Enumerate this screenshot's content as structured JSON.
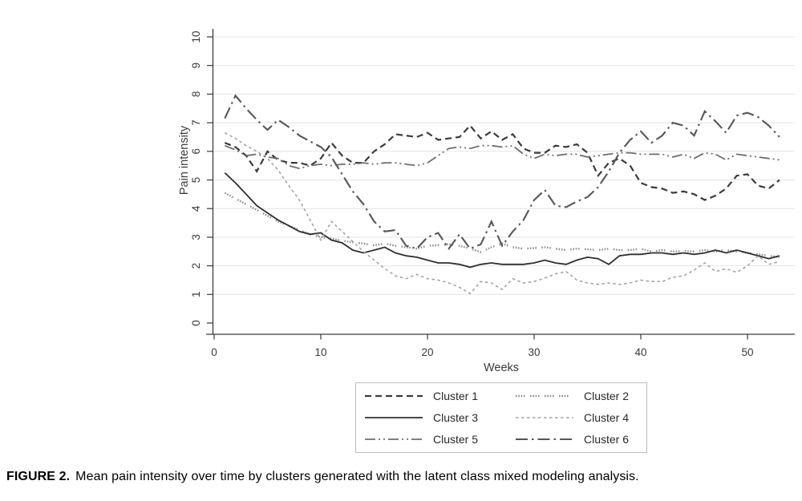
{
  "figure": {
    "caption_label": "FIGURE 2.",
    "caption_text": "Mean pain intensity over time by clusters generated with the latent class mixed modeling analysis."
  },
  "chart_data": {
    "type": "line",
    "title": "",
    "xlabel": "Weeks",
    "ylabel": "Pain intensity",
    "xlim": [
      0,
      54
    ],
    "ylim": [
      0,
      10
    ],
    "x_ticks": [
      0,
      10,
      20,
      30,
      40,
      50
    ],
    "y_ticks": [
      0,
      1,
      2,
      3,
      4,
      5,
      6,
      7,
      8,
      9,
      10
    ],
    "grid": "horizontal-light-gray",
    "legend_position": "below-chart-boxed-2-columns",
    "x_weeks": {
      "first": 1,
      "last": 53,
      "step": 1
    },
    "axis_color": "#3a3a3a",
    "grid_color": "#e4e4e4",
    "series": [
      {
        "name": "Cluster 1",
        "color": "#3b3b3b",
        "dash_style": "dashed",
        "values": [
          6.3,
          6.15,
          5.85,
          5.3,
          6.0,
          5.7,
          5.6,
          5.6,
          5.5,
          5.75,
          6.3,
          5.85,
          5.6,
          5.6,
          6.0,
          6.25,
          6.6,
          6.55,
          6.5,
          6.65,
          6.4,
          6.45,
          6.5,
          6.9,
          6.45,
          6.7,
          6.4,
          6.6,
          6.1,
          5.95,
          5.95,
          6.2,
          6.15,
          6.25,
          5.95,
          5.15,
          5.6,
          5.75,
          5.5,
          4.9,
          4.75,
          4.7,
          4.55,
          4.6,
          4.5,
          4.3,
          4.45,
          4.7,
          5.15,
          5.2,
          4.8,
          4.7,
          5.0
        ]
      },
      {
        "name": "Cluster 2",
        "color": "#8f8f8f",
        "dash_style": "dense-dotted",
        "values": [
          4.55,
          4.35,
          4.15,
          3.95,
          3.75,
          3.55,
          3.4,
          3.25,
          3.1,
          3.0,
          2.95,
          2.88,
          2.82,
          2.78,
          2.72,
          2.78,
          2.7,
          2.65,
          2.6,
          2.7,
          2.72,
          2.75,
          2.7,
          2.6,
          2.48,
          2.65,
          2.78,
          2.65,
          2.6,
          2.62,
          2.65,
          2.6,
          2.55,
          2.6,
          2.58,
          2.55,
          2.6,
          2.55,
          2.55,
          2.6,
          2.5,
          2.55,
          2.5,
          2.52,
          2.5,
          2.55,
          2.5,
          2.55,
          2.5,
          2.45,
          2.4,
          2.35,
          2.3
        ]
      },
      {
        "name": "Cluster 3",
        "color": "#2e2e2e",
        "dash_style": "solid",
        "values": [
          5.25,
          4.9,
          4.5,
          4.1,
          3.85,
          3.6,
          3.4,
          3.2,
          3.1,
          3.15,
          2.9,
          2.8,
          2.55,
          2.45,
          2.55,
          2.65,
          2.45,
          2.35,
          2.3,
          2.2,
          2.1,
          2.1,
          2.05,
          1.95,
          2.05,
          2.1,
          2.05,
          2.05,
          2.05,
          2.1,
          2.2,
          2.1,
          2.05,
          2.2,
          2.3,
          2.25,
          2.05,
          2.35,
          2.4,
          2.4,
          2.45,
          2.45,
          2.4,
          2.45,
          2.4,
          2.45,
          2.55,
          2.45,
          2.55,
          2.45,
          2.35,
          2.25,
          2.35
        ]
      },
      {
        "name": "Cluster 4",
        "color": "#a3a3a3",
        "dash_style": "short-dashed",
        "values": [
          6.65,
          6.45,
          6.2,
          6.0,
          5.75,
          5.35,
          4.8,
          4.3,
          3.6,
          2.9,
          3.55,
          3.2,
          2.85,
          2.5,
          2.2,
          1.9,
          1.65,
          1.55,
          1.7,
          1.55,
          1.5,
          1.4,
          1.25,
          1.03,
          1.45,
          1.4,
          1.17,
          1.55,
          1.4,
          1.45,
          1.57,
          1.72,
          1.8,
          1.5,
          1.4,
          1.35,
          1.4,
          1.35,
          1.4,
          1.5,
          1.45,
          1.45,
          1.6,
          1.65,
          1.85,
          2.1,
          1.8,
          1.9,
          1.77,
          2.0,
          2.35,
          2.05,
          2.15
        ]
      },
      {
        "name": "Cluster 5",
        "color": "#6e6e6e",
        "dash_style": "dash-dot-dot",
        "values": [
          6.2,
          6.05,
          5.85,
          5.9,
          5.8,
          5.75,
          5.5,
          5.4,
          5.5,
          5.55,
          5.5,
          5.55,
          5.55,
          5.6,
          5.55,
          5.6,
          5.6,
          5.55,
          5.5,
          5.6,
          5.85,
          6.1,
          6.15,
          6.1,
          6.2,
          6.2,
          6.15,
          6.2,
          5.9,
          5.75,
          5.9,
          5.85,
          5.9,
          5.9,
          5.8,
          5.85,
          5.9,
          5.95,
          5.95,
          5.9,
          5.9,
          5.9,
          5.8,
          5.9,
          5.75,
          5.95,
          5.9,
          5.7,
          5.9,
          5.85,
          5.8,
          5.75,
          5.7
        ]
      },
      {
        "name": "Cluster 6",
        "color": "#565656",
        "dash_style": "long-dash-dot",
        "values": [
          7.15,
          7.95,
          7.5,
          7.1,
          6.75,
          7.1,
          6.85,
          6.55,
          6.35,
          6.15,
          5.8,
          5.2,
          4.6,
          4.15,
          3.55,
          3.2,
          3.25,
          2.7,
          2.6,
          3.0,
          3.15,
          2.6,
          3.1,
          2.6,
          2.75,
          3.55,
          2.7,
          3.2,
          3.6,
          4.3,
          4.65,
          4.1,
          4.05,
          4.25,
          4.4,
          4.75,
          5.3,
          5.95,
          6.4,
          6.7,
          6.3,
          6.55,
          7.0,
          6.9,
          6.55,
          7.4,
          7.05,
          6.65,
          7.25,
          7.35,
          7.2,
          6.9,
          6.5
        ]
      }
    ]
  }
}
